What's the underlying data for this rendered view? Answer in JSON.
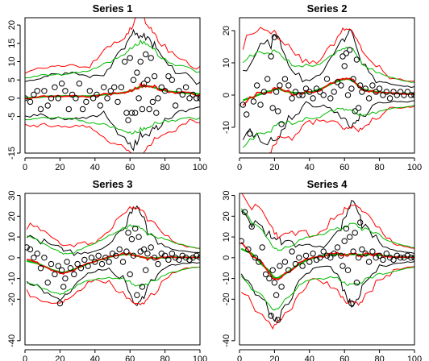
{
  "figure": {
    "colors": {
      "background": "#ffffff",
      "points": "#000000",
      "fit": "#000000",
      "band_red": "#ff0000",
      "band_green": "#00bb00",
      "axis": "#000000"
    }
  },
  "chart_data": [
    {
      "type": "scatter",
      "title": "Series 1",
      "xlabel": "",
      "ylabel": "",
      "xlim": [
        0,
        100
      ],
      "ylim": [
        -15,
        22
      ],
      "x_ticks": [
        0,
        20,
        40,
        60,
        80,
        100
      ],
      "y_ticks": [
        -15,
        -5,
        0,
        5,
        10,
        15,
        20
      ],
      "grid": false,
      "legend": "none",
      "points": [
        [
          0,
          0
        ],
        [
          3,
          -1
        ],
        [
          5,
          1
        ],
        [
          7,
          2
        ],
        [
          9,
          -3
        ],
        [
          11,
          2
        ],
        [
          13,
          -2
        ],
        [
          15,
          0
        ],
        [
          17,
          3
        ],
        [
          19,
          0
        ],
        [
          21,
          4
        ],
        [
          23,
          2
        ],
        [
          25,
          -3
        ],
        [
          27,
          1
        ],
        [
          29,
          0
        ],
        [
          31,
          4
        ],
        [
          33,
          -3
        ],
        [
          35,
          -1
        ],
        [
          37,
          2
        ],
        [
          39,
          0
        ],
        [
          41,
          1
        ],
        [
          43,
          -2
        ],
        [
          45,
          3
        ],
        [
          47,
          0
        ],
        [
          49,
          2
        ],
        [
          51,
          3
        ],
        [
          53,
          -1
        ],
        [
          55,
          3
        ],
        [
          57,
          10
        ],
        [
          58,
          -4
        ],
        [
          59,
          -6
        ],
        [
          60,
          11
        ],
        [
          61,
          -4
        ],
        [
          62,
          5
        ],
        [
          63,
          -4
        ],
        [
          64,
          7
        ],
        [
          65,
          0
        ],
        [
          66,
          10
        ],
        [
          67,
          -3
        ],
        [
          68,
          4
        ],
        [
          69,
          12
        ],
        [
          70,
          5
        ],
        [
          71,
          -3
        ],
        [
          72,
          11
        ],
        [
          73,
          -1
        ],
        [
          74,
          6
        ],
        [
          75,
          -4
        ],
        [
          76,
          0
        ],
        [
          78,
          3
        ],
        [
          80,
          2
        ],
        [
          82,
          6
        ],
        [
          84,
          5
        ],
        [
          86,
          -2
        ],
        [
          88,
          2
        ],
        [
          90,
          1
        ],
        [
          92,
          3
        ],
        [
          94,
          0
        ],
        [
          96,
          1
        ],
        [
          98,
          0
        ],
        [
          100,
          0
        ]
      ]
    },
    {
      "type": "scatter",
      "title": "Series 2",
      "xlabel": "",
      "ylabel": "",
      "xlim": [
        0,
        100
      ],
      "ylim": [
        -18,
        24
      ],
      "x_ticks": [
        0,
        20,
        40,
        60,
        80,
        100
      ],
      "y_ticks": [
        -10,
        0,
        10,
        20
      ],
      "grid": false,
      "legend": "none",
      "points": [
        [
          2,
          -3
        ],
        [
          4,
          -6
        ],
        [
          6,
          -12
        ],
        [
          8,
          -2
        ],
        [
          10,
          3
        ],
        [
          12,
          -3
        ],
        [
          14,
          1
        ],
        [
          16,
          5
        ],
        [
          18,
          12
        ],
        [
          19,
          -4
        ],
        [
          20,
          18
        ],
        [
          21,
          1
        ],
        [
          22,
          -5
        ],
        [
          23,
          3
        ],
        [
          24,
          -9
        ],
        [
          26,
          5
        ],
        [
          28,
          3
        ],
        [
          30,
          -1
        ],
        [
          32,
          1
        ],
        [
          34,
          0
        ],
        [
          36,
          0
        ],
        [
          38,
          2
        ],
        [
          40,
          1
        ],
        [
          42,
          -1
        ],
        [
          44,
          2
        ],
        [
          46,
          1
        ],
        [
          48,
          0
        ],
        [
          50,
          5
        ],
        [
          52,
          -1
        ],
        [
          54,
          1
        ],
        [
          56,
          4
        ],
        [
          58,
          3
        ],
        [
          59,
          12
        ],
        [
          60,
          9
        ],
        [
          61,
          13
        ],
        [
          62,
          0
        ],
        [
          63,
          14
        ],
        [
          64,
          2
        ],
        [
          65,
          5
        ],
        [
          66,
          -5
        ],
        [
          67,
          11
        ],
        [
          68,
          -4
        ],
        [
          69,
          3
        ],
        [
          70,
          1
        ],
        [
          72,
          2
        ],
        [
          74,
          -1
        ],
        [
          76,
          3
        ],
        [
          78,
          1
        ],
        [
          80,
          2
        ],
        [
          82,
          0
        ],
        [
          84,
          1
        ],
        [
          86,
          -1
        ],
        [
          88,
          1
        ],
        [
          90,
          0
        ],
        [
          92,
          1
        ],
        [
          94,
          0
        ],
        [
          96,
          1
        ],
        [
          98,
          0
        ],
        [
          100,
          0
        ]
      ]
    },
    {
      "type": "scatter",
      "title": "Series 3",
      "xlabel": "",
      "ylabel": "",
      "xlim": [
        0,
        100
      ],
      "ylim": [
        -42,
        31
      ],
      "x_ticks": [
        0,
        20,
        40,
        60,
        80,
        100
      ],
      "y_ticks": [
        -40,
        -20,
        -10,
        0,
        10,
        20,
        30
      ],
      "grid": false,
      "legend": "none",
      "points": [
        [
          1,
          5
        ],
        [
          3,
          4
        ],
        [
          5,
          0
        ],
        [
          7,
          2
        ],
        [
          9,
          -5
        ],
        [
          11,
          0
        ],
        [
          13,
          -12
        ],
        [
          15,
          -3
        ],
        [
          17,
          -8
        ],
        [
          19,
          -4
        ],
        [
          20,
          -22
        ],
        [
          21,
          -6
        ],
        [
          22,
          -14
        ],
        [
          23,
          -10
        ],
        [
          24,
          -2
        ],
        [
          26,
          -5
        ],
        [
          28,
          -8
        ],
        [
          30,
          -3
        ],
        [
          32,
          -5
        ],
        [
          34,
          -1
        ],
        [
          36,
          -4
        ],
        [
          38,
          0
        ],
        [
          40,
          -2
        ],
        [
          42,
          1
        ],
        [
          44,
          -3
        ],
        [
          46,
          0
        ],
        [
          48,
          -2
        ],
        [
          50,
          2
        ],
        [
          52,
          1
        ],
        [
          54,
          4
        ],
        [
          56,
          -2
        ],
        [
          58,
          3
        ],
        [
          59,
          12
        ],
        [
          60,
          -8
        ],
        [
          61,
          9
        ],
        [
          62,
          1
        ],
        [
          63,
          14
        ],
        [
          64,
          -18
        ],
        [
          65,
          10
        ],
        [
          66,
          3
        ],
        [
          67,
          -14
        ],
        [
          68,
          4
        ],
        [
          69,
          -6
        ],
        [
          70,
          2
        ],
        [
          72,
          5
        ],
        [
          74,
          0
        ],
        [
          76,
          -3
        ],
        [
          78,
          2
        ],
        [
          80,
          1
        ],
        [
          82,
          -1
        ],
        [
          84,
          2
        ],
        [
          86,
          0
        ],
        [
          88,
          -1
        ],
        [
          90,
          1
        ],
        [
          92,
          0
        ],
        [
          94,
          -1
        ],
        [
          96,
          0
        ],
        [
          98,
          1
        ],
        [
          100,
          0
        ]
      ]
    },
    {
      "type": "scatter",
      "title": "Series 4",
      "xlabel": "",
      "ylabel": "",
      "xlim": [
        0,
        100
      ],
      "ylim": [
        -42,
        31
      ],
      "x_ticks": [
        0,
        20,
        40,
        60,
        80,
        100
      ],
      "y_ticks": [
        -40,
        -20,
        -10,
        0,
        10,
        20,
        30
      ],
      "grid": false,
      "legend": "none",
      "points": [
        [
          1,
          8
        ],
        [
          3,
          22
        ],
        [
          5,
          4
        ],
        [
          7,
          15
        ],
        [
          9,
          0
        ],
        [
          11,
          -2
        ],
        [
          13,
          5
        ],
        [
          15,
          -8
        ],
        [
          17,
          -10
        ],
        [
          18,
          -28
        ],
        [
          19,
          -6
        ],
        [
          20,
          -12
        ],
        [
          21,
          -18
        ],
        [
          22,
          -30
        ],
        [
          23,
          -4
        ],
        [
          24,
          -14
        ],
        [
          26,
          -2
        ],
        [
          28,
          -6
        ],
        [
          30,
          3
        ],
        [
          32,
          -3
        ],
        [
          34,
          0
        ],
        [
          36,
          -4
        ],
        [
          38,
          1
        ],
        [
          40,
          -2
        ],
        [
          42,
          2
        ],
        [
          44,
          -1
        ],
        [
          46,
          0
        ],
        [
          48,
          3
        ],
        [
          50,
          1
        ],
        [
          52,
          0
        ],
        [
          54,
          2
        ],
        [
          56,
          5
        ],
        [
          58,
          1
        ],
        [
          59,
          -4
        ],
        [
          60,
          8
        ],
        [
          61,
          14
        ],
        [
          62,
          -6
        ],
        [
          63,
          10
        ],
        [
          64,
          -22
        ],
        [
          65,
          3
        ],
        [
          66,
          12
        ],
        [
          67,
          -12
        ],
        [
          68,
          0
        ],
        [
          69,
          17
        ],
        [
          70,
          4
        ],
        [
          72,
          2
        ],
        [
          74,
          -2
        ],
        [
          76,
          3
        ],
        [
          78,
          0
        ],
        [
          80,
          1
        ],
        [
          82,
          -1
        ],
        [
          84,
          2
        ],
        [
          86,
          0
        ],
        [
          88,
          -1
        ],
        [
          90,
          1
        ],
        [
          92,
          0
        ],
        [
          94,
          0
        ],
        [
          96,
          1
        ],
        [
          98,
          0
        ],
        [
          100,
          0
        ]
      ]
    }
  ]
}
